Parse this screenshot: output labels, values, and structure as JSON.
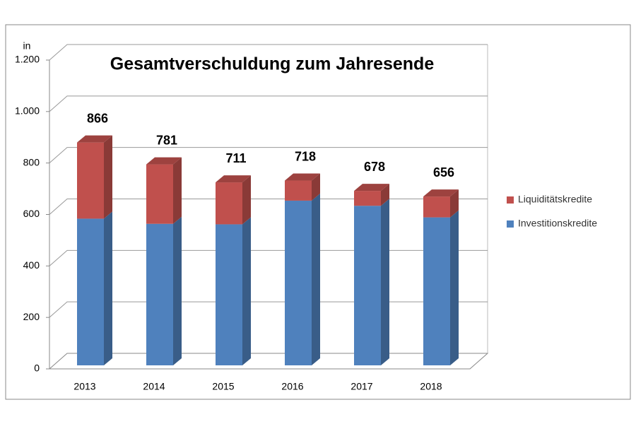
{
  "chart_data": {
    "type": "bar",
    "stacked": true,
    "title": "Gesamtverschuldung zum Jahresende",
    "y_label": "in",
    "categories": [
      "2013",
      "2014",
      "2015",
      "2016",
      "2017",
      "2018"
    ],
    "series": [
      {
        "name": "Investitionskredite",
        "color": "#4f81bd",
        "values": [
          570,
          550,
          548,
          640,
          620,
          575
        ]
      },
      {
        "name": "Liquiditätskredite",
        "color": "#c0504d",
        "values": [
          296,
          231,
          163,
          78,
          58,
          81
        ]
      }
    ],
    "totals": [
      866,
      781,
      711,
      718,
      678,
      656
    ],
    "ylim": [
      0,
      1200
    ],
    "yticks": [
      0,
      200,
      400,
      600,
      800,
      {
        "value": 1000,
        "label": "1.000"
      },
      {
        "value": 1200,
        "label": "1.200"
      }
    ],
    "grid": true,
    "legend": "right"
  }
}
